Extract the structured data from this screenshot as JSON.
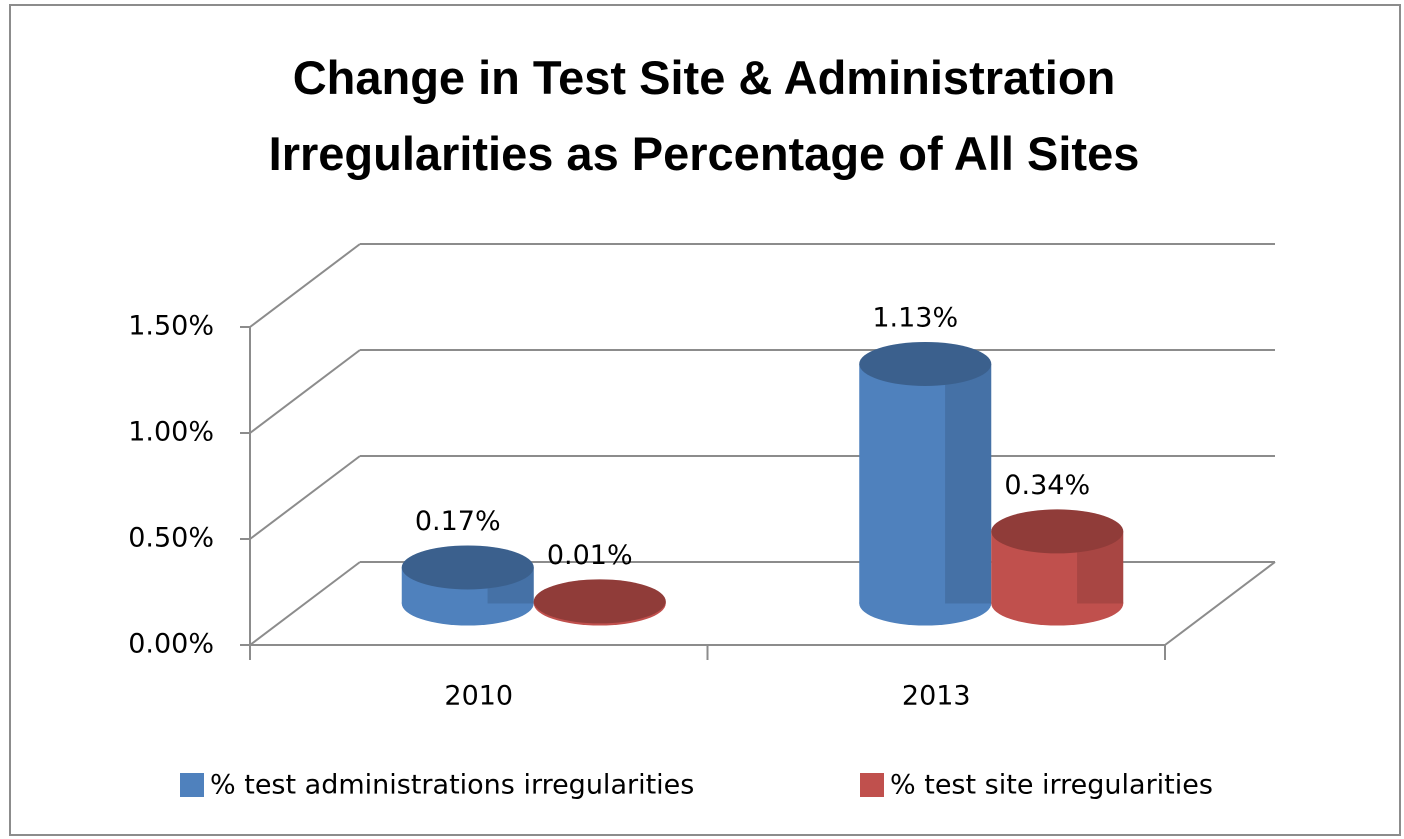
{
  "chart_data": {
    "type": "bar3d",
    "title": "Change in Test Site & Administration Irregularities as Percentage of All Sites",
    "categories": [
      "2010",
      "2013"
    ],
    "series": [
      {
        "name": "% test administrations irregularities",
        "color": "#4f81bd",
        "values": [
          0.17,
          1.13
        ],
        "value_labels": [
          "0.17%",
          "1.13%"
        ]
      },
      {
        "name": "% test site irregularities",
        "color": "#c0504d",
        "values": [
          0.01,
          0.34
        ],
        "value_labels": [
          "0.01%",
          "0.34%"
        ]
      }
    ],
    "ylim": [
      0,
      1.5
    ],
    "yticks": [
      {
        "value": 0,
        "label": "0.00%"
      },
      {
        "value": 0.5,
        "label": "0.50%"
      },
      {
        "value": 1,
        "label": "1.00%"
      },
      {
        "value": 1.5,
        "label": "1.50%"
      }
    ],
    "grid": true,
    "legend": "bottom"
  }
}
